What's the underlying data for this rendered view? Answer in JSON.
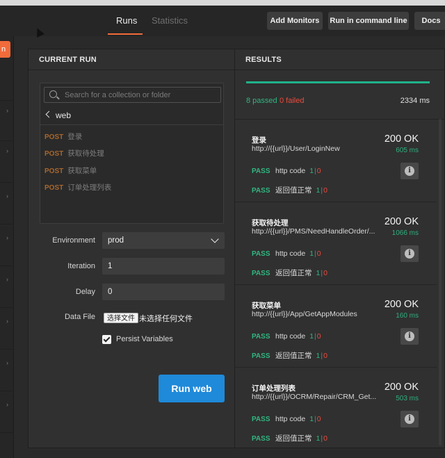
{
  "header": {
    "tabs": [
      {
        "label": "Runs",
        "active": true
      },
      {
        "label": "Statistics",
        "active": false
      }
    ],
    "buttons": {
      "add_monitors": "Add Monitors",
      "run_cmd": "Run in command line",
      "docs": "Docs"
    },
    "accent_color": "#f26b3a"
  },
  "left_rail": {
    "orange_button_label": "n"
  },
  "current_run": {
    "title": "CURRENT RUN",
    "search_placeholder": "Search for a collection or folder",
    "collection_name": "web",
    "requests": [
      {
        "method": "POST",
        "name": "登录"
      },
      {
        "method": "POST",
        "name": "获取待处理"
      },
      {
        "method": "POST",
        "name": "获取菜单"
      },
      {
        "method": "POST",
        "name": "订单处理列表"
      }
    ],
    "environment_label": "Environment",
    "environment_value": "prod",
    "iteration_label": "Iteration",
    "iteration_value": "1",
    "delay_label": "Delay",
    "delay_value": "0",
    "data_file_label": "Data File",
    "choose_file_button": "选择文件",
    "no_file_text": "未选择任何文件",
    "persist_label": "Persist Variables",
    "persist_checked": true,
    "run_button": "Run web"
  },
  "results": {
    "title": "RESULTS",
    "passed_text": "8 passed",
    "failed_text": "0 failed",
    "total_time": "2334 ms",
    "colors": {
      "pass": "#30b681",
      "fail": "#ea4b3c",
      "run_button": "#1f8ad9"
    },
    "items": [
      {
        "name": "登录",
        "url": "http://{{url}}/User/LoginNew",
        "status": "200 OK",
        "time": "605 ms",
        "tests": [
          {
            "result": "PASS",
            "name": "http code",
            "pass": "1",
            "fail": "0"
          },
          {
            "result": "PASS",
            "name": "返回值正常",
            "pass": "1",
            "fail": "0"
          }
        ]
      },
      {
        "name": "获取待处理",
        "url": "http://{{url}}/PMS/NeedHandleOrder/...",
        "status": "200 OK",
        "time": "1066 ms",
        "tests": [
          {
            "result": "PASS",
            "name": "http code",
            "pass": "1",
            "fail": "0"
          },
          {
            "result": "PASS",
            "name": "返回值正常",
            "pass": "1",
            "fail": "0"
          }
        ]
      },
      {
        "name": "获取菜单",
        "url": "http://{{url}}/App/GetAppModules",
        "status": "200 OK",
        "time": "160 ms",
        "tests": [
          {
            "result": "PASS",
            "name": "http code",
            "pass": "1",
            "fail": "0"
          },
          {
            "result": "PASS",
            "name": "返回值正常",
            "pass": "1",
            "fail": "0"
          }
        ]
      },
      {
        "name": "订单处理列表",
        "url": "http://{{url}}/OCRM/Repair/CRM_Get...",
        "status": "200 OK",
        "time": "503 ms",
        "tests": [
          {
            "result": "PASS",
            "name": "http code",
            "pass": "1",
            "fail": "0"
          },
          {
            "result": "PASS",
            "name": "返回值正常",
            "pass": "1",
            "fail": "0"
          }
        ]
      }
    ]
  }
}
